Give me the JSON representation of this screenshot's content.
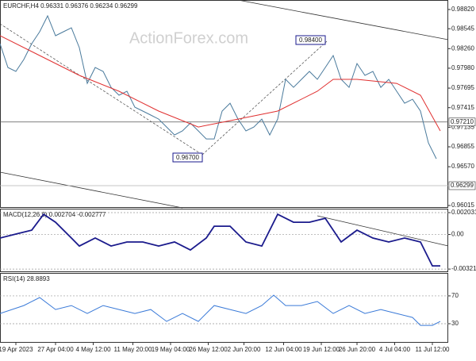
{
  "chart_data": [
    {
      "type": "line",
      "title": "EURCHF,H4 0.96331 0.96376 0.96234 0.96299",
      "watermark": "ActionForex.com",
      "xlim": [
        0,
        113
      ],
      "ylim": [
        0.95981,
        0.98956
      ],
      "yticks": [
        {
          "value": 0.9882,
          "label": "0.98820"
        },
        {
          "value": 0.98545,
          "label": "0.98545"
        },
        {
          "value": 0.9826,
          "label": "0.98260"
        },
        {
          "value": 0.9798,
          "label": "0.97980"
        },
        {
          "value": 0.97695,
          "label": "0.97695"
        },
        {
          "value": 0.97415,
          "label": "0.97415"
        },
        {
          "value": 0.97135,
          "label": "0.97135"
        },
        {
          "value": 0.96855,
          "label": "0.96855"
        },
        {
          "value": 0.9657,
          "label": "0.96570"
        },
        {
          "value": 0.96015,
          "label": "0.96015"
        }
      ],
      "levels": [
        {
          "value": 0.9721,
          "label": "0.97210",
          "color": "#555555"
        },
        {
          "value": 0.96299,
          "label": "0.96299",
          "color": "#b0b0b0"
        }
      ],
      "annotations": [
        "0.98400",
        "0.96700"
      ],
      "series": [
        {
          "name": "EURCHF",
          "color": "#4a7a9c",
          "x": [
            0,
            2,
            4,
            6,
            8,
            10,
            12,
            14,
            16,
            18,
            20,
            22,
            24,
            26,
            28,
            30,
            32,
            34,
            36,
            38,
            40,
            42,
            44,
            46,
            48,
            50,
            52,
            54,
            56,
            58,
            60,
            62,
            64,
            66,
            68,
            70,
            72,
            74,
            76,
            78,
            80,
            82,
            84,
            86,
            88,
            90,
            92,
            94,
            96,
            98,
            100,
            102,
            104,
            106,
            108,
            110
          ],
          "values": [
            0.98331,
            0.9799,
            0.97934,
            0.98104,
            0.98331,
            0.98502,
            0.98729,
            0.98445,
            0.98502,
            0.98558,
            0.98274,
            0.97763,
            0.9799,
            0.97934,
            0.97706,
            0.97593,
            0.9765,
            0.97422,
            0.97366,
            0.97309,
            0.97252,
            0.97138,
            0.97025,
            0.97082,
            0.97195,
            0.97082,
            0.96968,
            0.96968,
            0.97366,
            0.97479,
            0.97252,
            0.97082,
            0.97138,
            0.97252,
            0.97025,
            0.97252,
            0.9782,
            0.97706,
            0.9782,
            0.97934,
            0.9782,
            0.9799,
            0.98161,
            0.9782,
            0.97706,
            0.98047,
            0.97877,
            0.97934,
            0.97706,
            0.9782,
            0.9765,
            0.97479,
            0.97536,
            0.97366,
            0.96911,
            0.96684
          ]
        },
        {
          "name": "MA",
          "color": "#e03030",
          "x": [
            0,
            10,
            20,
            30,
            40,
            50,
            60,
            70,
            80,
            84,
            90,
            100,
            106,
            111
          ],
          "values": [
            0.98445,
            0.98161,
            0.97877,
            0.9765,
            0.97366,
            0.97138,
            0.97252,
            0.97366,
            0.9765,
            0.9782,
            0.9782,
            0.97763,
            0.97593,
            0.97082
          ]
        }
      ]
    },
    {
      "type": "line",
      "title": "MACD(12,26,9) 0.002704 -0.002777",
      "xlim": [
        0,
        113
      ],
      "ylim": [
        -0.0035,
        0.0024
      ],
      "yticks": [
        {
          "value": 0.002031,
          "label": "0.002031"
        },
        {
          "value": 0,
          "label": "0.00"
        },
        {
          "value": -0.003214,
          "label": "-0.003214"
        }
      ],
      "series": [
        {
          "name": "MACD",
          "color": "#1a1a8c",
          "x": [
            0,
            4,
            8,
            11,
            14,
            18,
            20,
            24,
            28,
            32,
            36,
            40,
            44,
            48,
            52,
            54,
            58,
            62,
            66,
            70,
            74,
            78,
            82,
            86,
            90,
            94,
            98,
            102,
            106,
            109,
            111
          ],
          "values": [
            -0.00033,
            4e-05,
            0.0004,
            0.00188,
            0.00114,
            -0.00033,
            -0.00107,
            -0.00033,
            -0.00107,
            -0.0007,
            -0.0007,
            -0.00107,
            -0.0007,
            -0.00144,
            -0.00033,
            0.00077,
            0.00077,
            -0.0007,
            -0.00107,
            0.00188,
            0.00114,
            0.00114,
            0.00151,
            -0.0007,
            0.0004,
            -0.00033,
            -0.0007,
            -0.00033,
            -0.0007,
            -0.00292,
            -0.00292
          ]
        }
      ]
    },
    {
      "type": "line",
      "title": "RSI(14) 28.8893",
      "xlim": [
        0,
        113
      ],
      "ylim": [
        2.6,
        103
      ],
      "yticks": [
        70,
        30
      ],
      "xticks": [
        {
          "value": 4,
          "label": "19 Apr 2023"
        },
        {
          "value": 14,
          "label": "27 Apr 04:00"
        },
        {
          "value": 23.5,
          "label": "4 May 12:00"
        },
        {
          "value": 33.5,
          "label": "11 May 20:00"
        },
        {
          "value": 43,
          "label": "19 May 04:00"
        },
        {
          "value": 52.5,
          "label": "26 May 12:00"
        },
        {
          "value": 61.5,
          "label": "2 Jun 20:00"
        },
        {
          "value": 71.5,
          "label": "12 Jun 04:00"
        },
        {
          "value": 81,
          "label": "19 Jun 12:00"
        },
        {
          "value": 90,
          "label": "26 Jun 20:00"
        },
        {
          "value": 99.5,
          "label": "4 Jul 04:00"
        },
        {
          "value": 109,
          "label": "11 Jul 12:00"
        }
      ],
      "series": [
        {
          "name": "RSI",
          "color": "#3a7ad8",
          "x": [
            0,
            6,
            10,
            14,
            18,
            22,
            26,
            30,
            34,
            38,
            42,
            46,
            50,
            54,
            58,
            62,
            66,
            69,
            72,
            76,
            80,
            84,
            88,
            92,
            96,
            100,
            104,
            106,
            109,
            111
          ],
          "values": [
            44.7,
            56.1,
            67.6,
            50.4,
            56.1,
            44.7,
            56.1,
            50.4,
            44.7,
            50.4,
            33.3,
            44.7,
            33.3,
            56.1,
            50.4,
            44.7,
            56.1,
            71.0,
            56.1,
            56.1,
            61.9,
            44.7,
            56.1,
            44.7,
            50.4,
            44.7,
            39.0,
            27.6,
            27.6,
            33.3
          ]
        }
      ]
    }
  ]
}
